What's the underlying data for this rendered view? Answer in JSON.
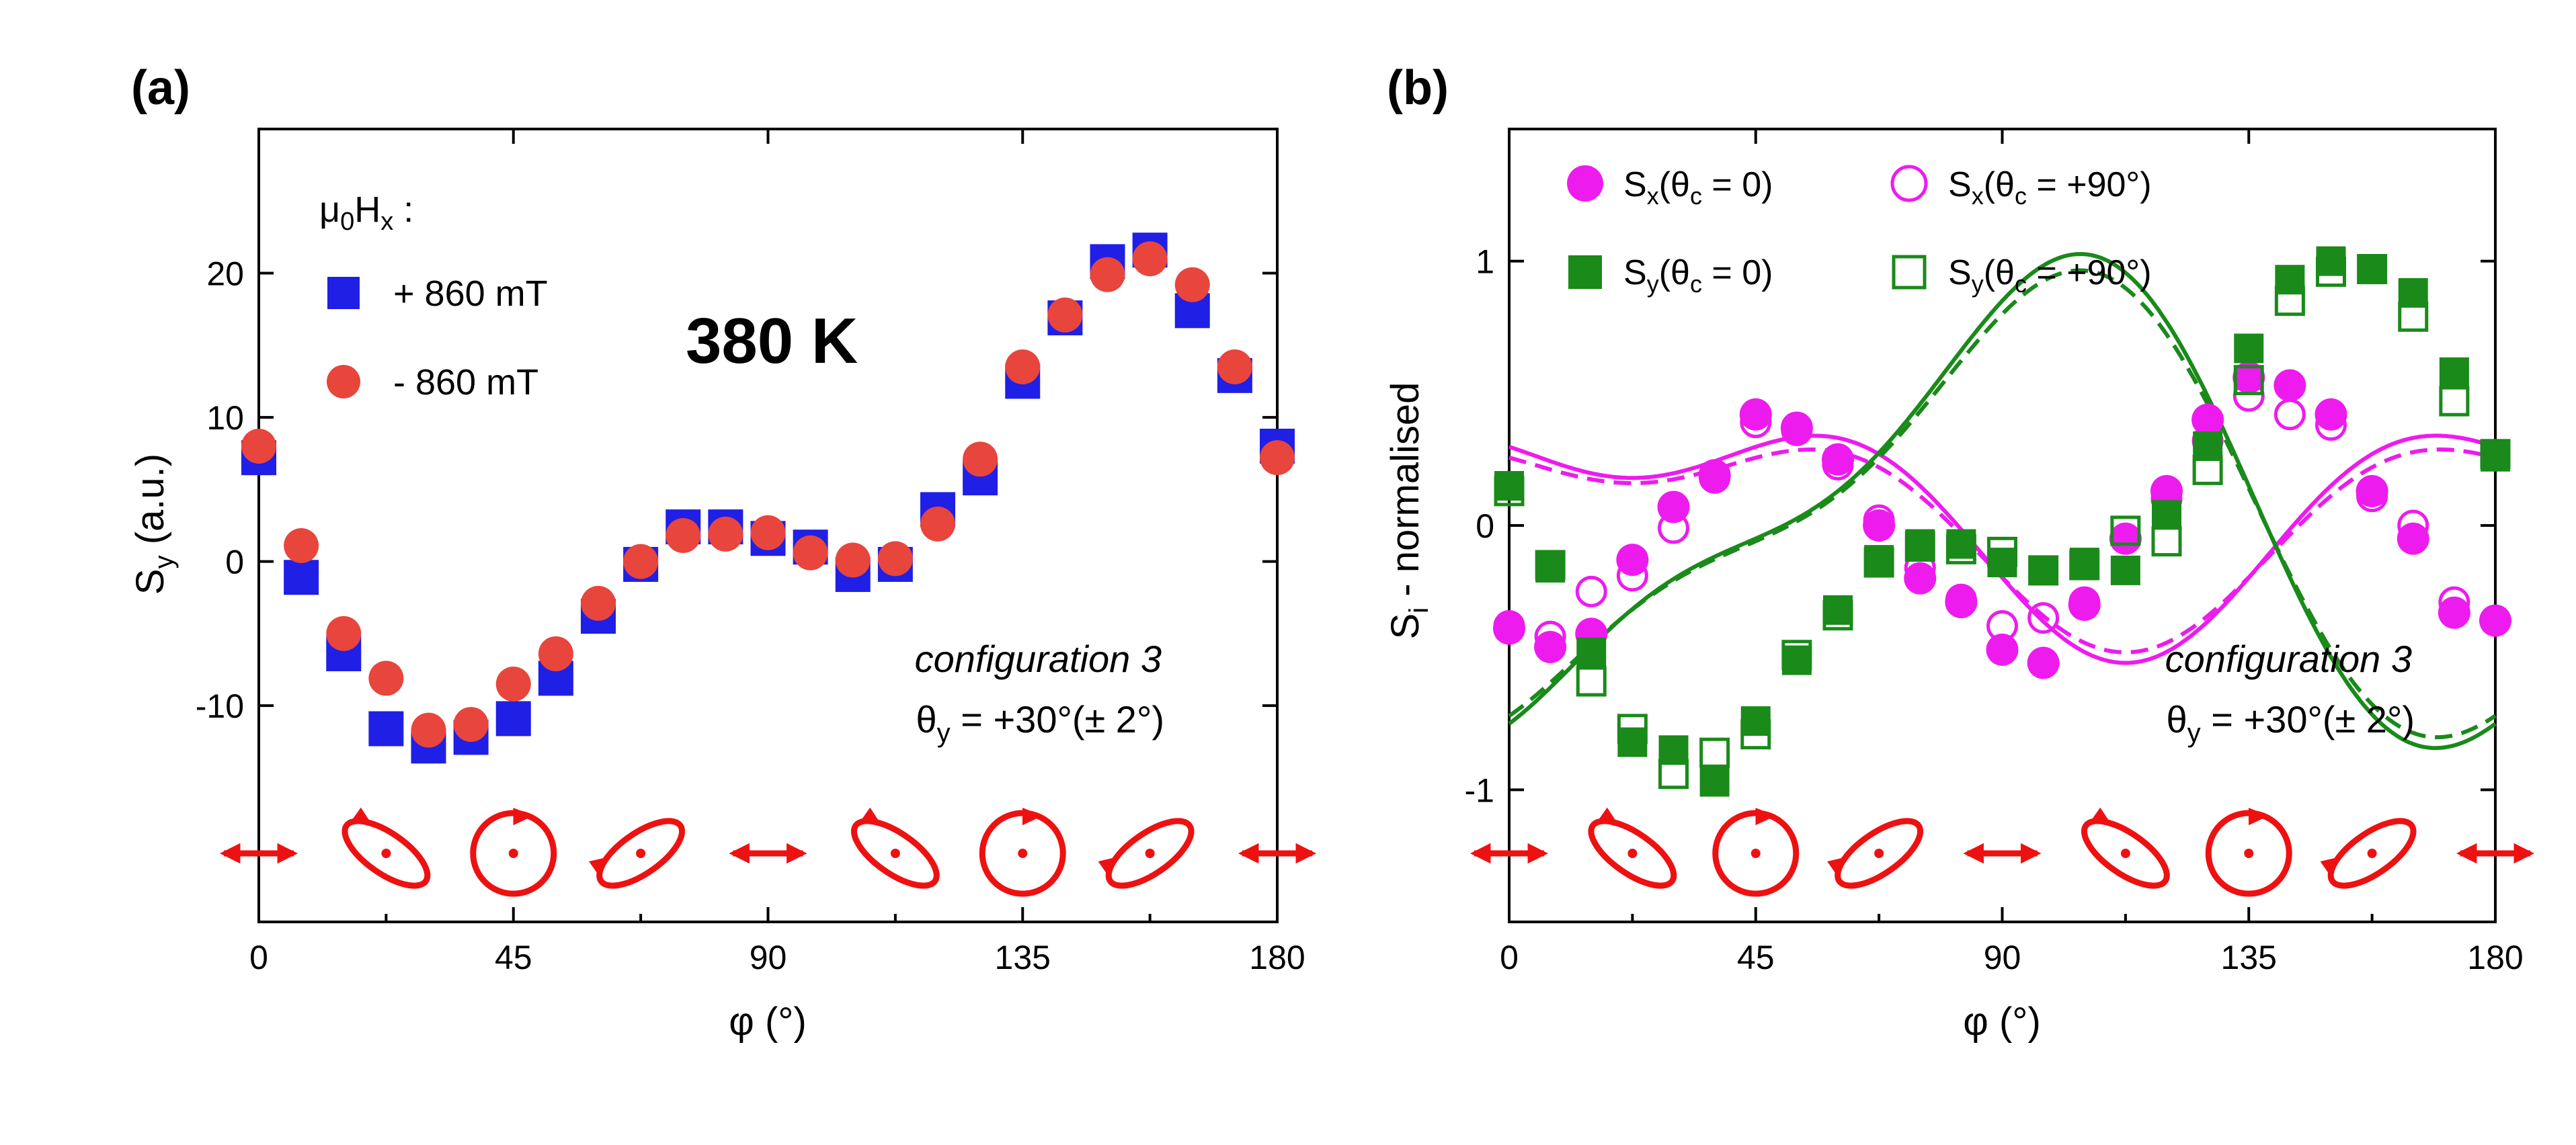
{
  "colors": {
    "blue": "#1f1fe6",
    "red_marker": "#e8453c",
    "magenta": "#ee1bee",
    "green": "#1a8a1a",
    "polarization": "#ee1111",
    "axis": "#000000"
  },
  "chart_data": [
    {
      "type": "scatter",
      "panel_label": "(a)",
      "xlabel": "φ (°)",
      "ylabel_main": "S",
      "ylabel_sub": "y",
      "ylabel_tail": " (a.u.)",
      "xlim": [
        0,
        180
      ],
      "ylim": [
        -25,
        30
      ],
      "xticks": [
        0,
        45,
        90,
        135,
        180
      ],
      "xtick_labels": [
        "0",
        "45",
        "90",
        "135",
        "180"
      ],
      "yticks": [
        -10,
        0,
        10,
        20
      ],
      "ytick_labels": [
        "-10",
        "0",
        "10",
        "20"
      ],
      "legend_title_main": "μ",
      "legend_title_sub0": "0",
      "legend_title_mid": "H",
      "legend_title_sub1": "x",
      "legend_title_tail": " :",
      "big_label": "380 K",
      "config_label": "configuration 3",
      "theta_label": "θ",
      "theta_sub": "y",
      "theta_value": " = +30°(± 2°)",
      "legend_position": "top-left",
      "series": [
        {
          "name": "+ 860 mT",
          "marker": "square",
          "color": "#1f1fe6",
          "x": [
            0,
            7.5,
            15,
            22.5,
            30,
            37.5,
            45,
            52.5,
            60,
            67.5,
            75,
            82.5,
            90,
            97.5,
            105,
            112.5,
            120,
            127.5,
            135,
            142.5,
            150,
            157.5,
            165,
            172.5,
            180
          ],
          "y": [
            7.2,
            -1.1,
            -6.4,
            -11.6,
            -12.8,
            -12.2,
            -10.9,
            -8.1,
            -3.8,
            -0.2,
            2.4,
            2.4,
            1.6,
            1.0,
            -0.9,
            -0.2,
            3.6,
            5.8,
            12.5,
            16.9,
            20.8,
            21.6,
            17.4,
            12.9,
            8.0
          ]
        },
        {
          "name": "- 860 mT",
          "marker": "circle",
          "color": "#e8453c",
          "x": [
            0,
            7.5,
            15,
            22.5,
            30,
            37.5,
            45,
            52.5,
            60,
            67.5,
            75,
            82.5,
            90,
            97.5,
            105,
            112.5,
            120,
            127.5,
            135,
            142.5,
            150,
            157.5,
            165,
            172.5,
            180
          ],
          "y": [
            8.0,
            1.1,
            -5.0,
            -8.1,
            -11.7,
            -11.3,
            -8.5,
            -6.4,
            -2.9,
            0.0,
            1.8,
            1.9,
            2.0,
            0.6,
            0.1,
            0.2,
            2.6,
            7.1,
            13.5,
            17.1,
            19.9,
            21.0,
            19.2,
            13.5,
            7.2
          ]
        }
      ],
      "polarization_icons": [
        "linear",
        "ellipse-left",
        "circle",
        "ellipse-right",
        "linear",
        "ellipse-left",
        "circle",
        "ellipse-right",
        "linear"
      ]
    },
    {
      "type": "scatter",
      "panel_label": "(b)",
      "xlabel": "φ (°)",
      "ylabel_main": "S",
      "ylabel_sub": "i",
      "ylabel_tail": " - normalised",
      "xlim": [
        0,
        180
      ],
      "ylim": [
        -1.5,
        1.5
      ],
      "xticks": [
        0,
        45,
        90,
        135,
        180
      ],
      "xtick_labels": [
        "0",
        "45",
        "90",
        "135",
        "180"
      ],
      "yticks": [
        -1,
        0,
        1
      ],
      "ytick_labels": [
        "-1",
        "0",
        "1"
      ],
      "config_label": "configuration 3",
      "theta_label": "θ",
      "theta_sub": "y",
      "theta_value": " = +30°(± 2°)",
      "legend_position": "top",
      "legend": [
        {
          "main": "S",
          "sub": "x",
          "open": "(θ",
          "sub2": "c",
          "close": " = 0)"
        },
        {
          "main": "S",
          "sub": "x",
          "open": "(θ",
          "sub2": "c",
          "close": " = +90°)"
        },
        {
          "main": "S",
          "sub": "y",
          "open": "(θ",
          "sub2": "c",
          "close": " = 0)"
        },
        {
          "main": "S",
          "sub": "y",
          "open": "(θ",
          "sub2": "c",
          "close": " = +90°)"
        }
      ],
      "series": [
        {
          "name": "Sx(θc = 0)",
          "marker": "circle-filled",
          "color": "#ee1bee",
          "x": [
            0,
            7.5,
            15,
            22.5,
            30,
            37.5,
            45,
            52.5,
            60,
            67.5,
            75,
            82.5,
            90,
            97.5,
            105,
            112.5,
            120,
            127.5,
            135,
            142.5,
            150,
            157.5,
            165,
            172.5,
            180
          ],
          "y": [
            -0.39,
            -0.46,
            -0.41,
            -0.13,
            0.07,
            0.19,
            0.42,
            0.37,
            0.25,
            0.0,
            -0.2,
            -0.29,
            -0.47,
            -0.52,
            -0.3,
            -0.05,
            0.13,
            0.4,
            0.56,
            0.53,
            0.42,
            0.13,
            -0.05,
            -0.33,
            -0.36
          ]
        },
        {
          "name": "Sx(θc = +90°)",
          "marker": "circle-open",
          "color": "#ee1bee",
          "x": [
            0,
            7.5,
            15,
            22.5,
            30,
            37.5,
            45,
            52.5,
            60,
            67.5,
            75,
            82.5,
            90,
            97.5,
            105,
            112.5,
            120,
            127.5,
            135,
            142.5,
            150,
            157.5,
            165,
            172.5,
            180
          ],
          "y": [
            -0.38,
            -0.42,
            -0.25,
            -0.19,
            -0.01,
            0.18,
            0.39,
            0.36,
            0.23,
            0.02,
            -0.16,
            -0.28,
            -0.38,
            -0.35,
            -0.29,
            -0.05,
            0.1,
            0.32,
            0.49,
            0.42,
            0.38,
            0.11,
            0.0,
            -0.29,
            -0.36
          ]
        },
        {
          "name": "Sy(θc = 0)",
          "marker": "square-filled",
          "color": "#1a8a1a",
          "x": [
            0,
            7.5,
            15,
            22.5,
            30,
            37.5,
            45,
            52.5,
            60,
            67.5,
            75,
            82.5,
            90,
            97.5,
            105,
            112.5,
            120,
            127.5,
            135,
            142.5,
            150,
            157.5,
            165,
            172.5,
            180
          ],
          "y": [
            0.15,
            -0.16,
            -0.48,
            -0.82,
            -0.85,
            -0.97,
            -0.74,
            -0.51,
            -0.32,
            -0.13,
            -0.07,
            -0.07,
            -0.14,
            -0.17,
            -0.14,
            -0.17,
            0.04,
            0.3,
            0.67,
            0.93,
            1.0,
            0.97,
            0.88,
            0.58,
            0.26
          ]
        },
        {
          "name": "Sy(θc = +90°)",
          "marker": "square-open",
          "color": "#1a8a1a",
          "x": [
            0,
            7.5,
            15,
            22.5,
            30,
            37.5,
            45,
            52.5,
            60,
            67.5,
            75,
            82.5,
            90,
            97.5,
            105,
            112.5,
            120,
            127.5,
            135,
            142.5,
            150,
            157.5,
            165,
            172.5,
            180
          ],
          "y": [
            0.13,
            -0.15,
            -0.59,
            -0.77,
            -0.94,
            -0.86,
            -0.79,
            -0.49,
            -0.34,
            -0.14,
            -0.08,
            -0.09,
            -0.1,
            -0.17,
            -0.15,
            -0.02,
            -0.06,
            0.21,
            0.55,
            0.85,
            0.96,
            0.97,
            0.79,
            0.47,
            0.27
          ]
        }
      ],
      "fits": [
        {
          "name": "Sx(θc = 0) fit",
          "color": "#ee1bee",
          "dash": false,
          "terms": [
            [
              0.05,
              0,
              0
            ],
            [
              0.35,
              2,
              -0.785
            ],
            [
              0.22,
              4,
              1.571
            ]
          ]
        },
        {
          "name": "Sx(θc = +90°) fit",
          "color": "#ee1bee",
          "dash": true,
          "terms": [
            [
              0.03,
              0,
              0
            ],
            [
              0.32,
              2,
              -0.785
            ],
            [
              0.19,
              4,
              1.571
            ]
          ]
        },
        {
          "name": "Sy(θc = 0) fit",
          "color": "#1a8a1a",
          "dash": false,
          "terms": [
            [
              0.05,
              0,
              0
            ],
            [
              0.1,
              2,
              1.571
            ],
            [
              0.8,
              2,
              3.142
            ],
            [
              0.27,
              4,
              4.712
            ]
          ]
        },
        {
          "name": "Sy(θc = +90°) fit",
          "color": "#1a8a1a",
          "dash": true,
          "terms": [
            [
              0.04,
              0,
              0
            ],
            [
              0.1,
              2,
              1.571
            ],
            [
              0.76,
              2,
              3.142
            ],
            [
              0.25,
              4,
              4.712
            ]
          ]
        }
      ],
      "polarization_icons": [
        "linear",
        "ellipse-left",
        "circle",
        "ellipse-right",
        "linear",
        "ellipse-left",
        "circle",
        "ellipse-right",
        "linear"
      ]
    }
  ]
}
